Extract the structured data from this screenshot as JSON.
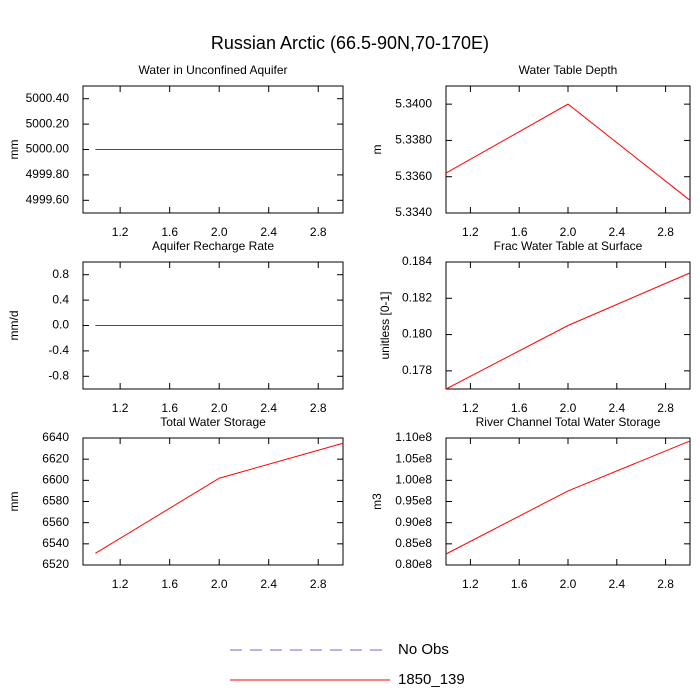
{
  "title": "Russian Arctic (66.5-90N,70-170E)",
  "legend": [
    {
      "name": "No Obs",
      "color": "#6a6ad0",
      "dashed": true
    },
    {
      "name": "1850_139",
      "color": "#ff0000",
      "dashed": false
    }
  ],
  "chart_data": [
    {
      "type": "line",
      "title": "Water in Unconfined Aquifer",
      "ylabel": "mm",
      "x": [
        1,
        2,
        3
      ],
      "series": [
        {
          "color": "#ff0000",
          "values": [
            5000.0,
            5000.0,
            5000.0
          ]
        }
      ],
      "xlim": [
        0.9,
        3.0
      ],
      "xticks": [
        1.2,
        1.6,
        {
          "value": 2,
          "label": "2.0"
        },
        2.4,
        2.8
      ],
      "ylim": [
        4999.5,
        5000.5
      ],
      "yticks": [
        {
          "value": 4999.6,
          "label": "4999.60"
        },
        {
          "value": 4999.8,
          "label": "4999.80"
        },
        {
          "value": 5000,
          "label": "5000.00"
        },
        {
          "value": 5000.2,
          "label": "5000.20"
        },
        {
          "value": 5000.4,
          "label": "5000.40"
        }
      ]
    },
    {
      "type": "line",
      "title": "Water Table Depth",
      "ylabel": "m",
      "x": [
        1,
        2,
        3
      ],
      "series": [
        {
          "color": "#ff0000",
          "values": [
            5.3362,
            5.34,
            5.3347
          ]
        }
      ],
      "xlim": [
        1.0,
        3.0
      ],
      "xticks": [
        1.2,
        1.6,
        {
          "value": 2,
          "label": "2.0"
        },
        2.4,
        2.8
      ],
      "ylim": [
        5.334,
        5.341
      ],
      "yticks": [
        {
          "value": 5.334,
          "label": "5.3340"
        },
        {
          "value": 5.336,
          "label": "5.3360"
        },
        {
          "value": 5.338,
          "label": "5.3380"
        },
        {
          "value": 5.34,
          "label": "5.3400"
        }
      ]
    },
    {
      "type": "line",
      "title": "Aquifer Recharge Rate",
      "ylabel": "mm/d",
      "x": [
        1,
        2,
        3
      ],
      "series": [
        {
          "color": "#ff0000",
          "values": [
            0,
            0,
            0
          ]
        }
      ],
      "xlim": [
        0.9,
        3.0
      ],
      "xticks": [
        1.2,
        1.6,
        {
          "value": 2,
          "label": "2.0"
        },
        2.4,
        2.8
      ],
      "ylim": [
        -1,
        1
      ],
      "yticks": [
        -0.8,
        -0.4,
        {
          "value": 0,
          "label": "0.0"
        },
        0.4,
        0.8
      ]
    },
    {
      "type": "line",
      "title": "Frac Water Table at Surface",
      "ylabel": "unitless [0-1]",
      "x": [
        1,
        2,
        3
      ],
      "series": [
        {
          "color": "#ff0000",
          "values": [
            0.177,
            0.1805,
            0.1834
          ]
        }
      ],
      "xlim": [
        1.0,
        3.0
      ],
      "xticks": [
        1.2,
        1.6,
        {
          "value": 2,
          "label": "2.0"
        },
        2.4,
        2.8
      ],
      "ylim": [
        0.177,
        0.184
      ],
      "yticks": [
        0.178,
        {
          "value": 0.18,
          "label": "0.180"
        },
        0.182,
        0.184
      ]
    },
    {
      "type": "line",
      "title": "Total Water Storage",
      "ylabel": "mm",
      "x": [
        1,
        2,
        3
      ],
      "series": [
        {
          "color": "#ff0000",
          "values": [
            6531,
            6602,
            6635
          ]
        }
      ],
      "xlim": [
        0.9,
        3.0
      ],
      "xticks": [
        1.2,
        1.6,
        {
          "value": 2,
          "label": "2.0"
        },
        2.4,
        2.8
      ],
      "ylim": [
        6520,
        6640
      ],
      "yticks": [
        6520,
        6540,
        6560,
        6580,
        6600,
        6620,
        6640
      ]
    },
    {
      "type": "line",
      "title": "River Channel Total Water Storage",
      "ylabel": "m3",
      "x": [
        1,
        2,
        3
      ],
      "series": [
        {
          "color": "#ff0000",
          "values": [
            82600000,
            97500000,
            109300000
          ]
        }
      ],
      "xlim": [
        1.0,
        3.0
      ],
      "xticks": [
        1.2,
        1.6,
        {
          "value": 2,
          "label": "2.0"
        },
        2.4,
        2.8
      ],
      "ylim": [
        80000000,
        110000000
      ],
      "yticks": [
        {
          "value": 80000000,
          "label": "0.80e8"
        },
        {
          "value": 85000000,
          "label": "0.85e8"
        },
        {
          "value": 90000000,
          "label": "0.90e8"
        },
        {
          "value": 95000000,
          "label": "0.95e8"
        },
        {
          "value": 100000000,
          "label": "1.00e8"
        },
        {
          "value": 105000000,
          "label": "1.05e8"
        },
        {
          "value": 110000000,
          "label": "1.10e8"
        }
      ]
    }
  ]
}
